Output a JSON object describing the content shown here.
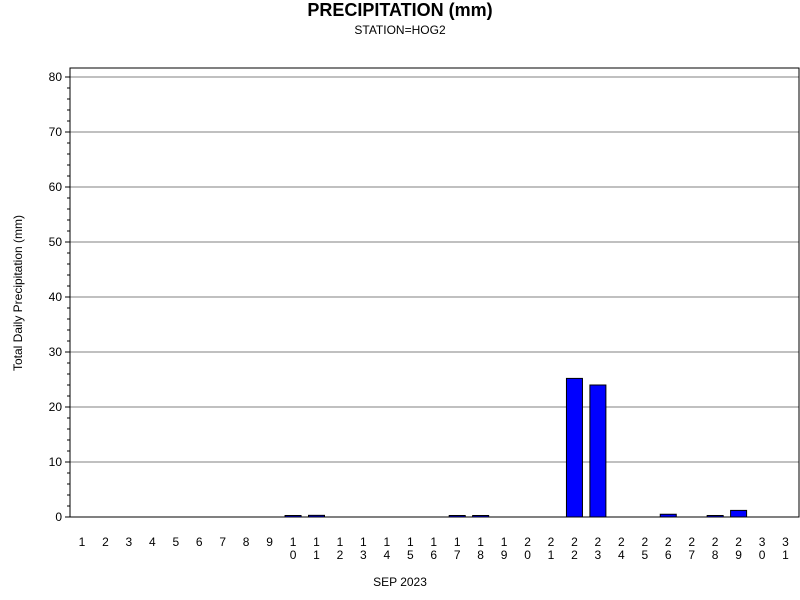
{
  "chart_data": {
    "type": "bar",
    "title": "PRECIPITATION (mm)",
    "subtitle": "STATION=HOG2",
    "xlabel": "SEP 2023",
    "ylabel": "Total Daily Precipitation (mm)",
    "ylim": [
      0,
      80
    ],
    "yticks": [
      "0",
      "10",
      "20",
      "30",
      "40",
      "50",
      "60",
      "70",
      "80"
    ],
    "grid": true,
    "categories": [
      "1",
      "2",
      "3",
      "4",
      "5",
      "6",
      "7",
      "8",
      "9",
      "10",
      "11",
      "12",
      "13",
      "14",
      "15",
      "16",
      "17",
      "18",
      "19",
      "20",
      "21",
      "22",
      "23",
      "24",
      "25",
      "26",
      "27",
      "28",
      "29",
      "30",
      "31"
    ],
    "values": [
      0,
      0,
      0,
      0,
      0,
      0,
      0,
      0,
      0,
      0.1,
      0.3,
      0,
      0,
      0,
      0,
      0,
      0.1,
      0.1,
      0,
      0,
      0,
      25.2,
      24.0,
      0,
      0,
      0.5,
      0,
      0.1,
      1.2,
      0,
      0
    ],
    "bar_color": "#0000ff"
  }
}
